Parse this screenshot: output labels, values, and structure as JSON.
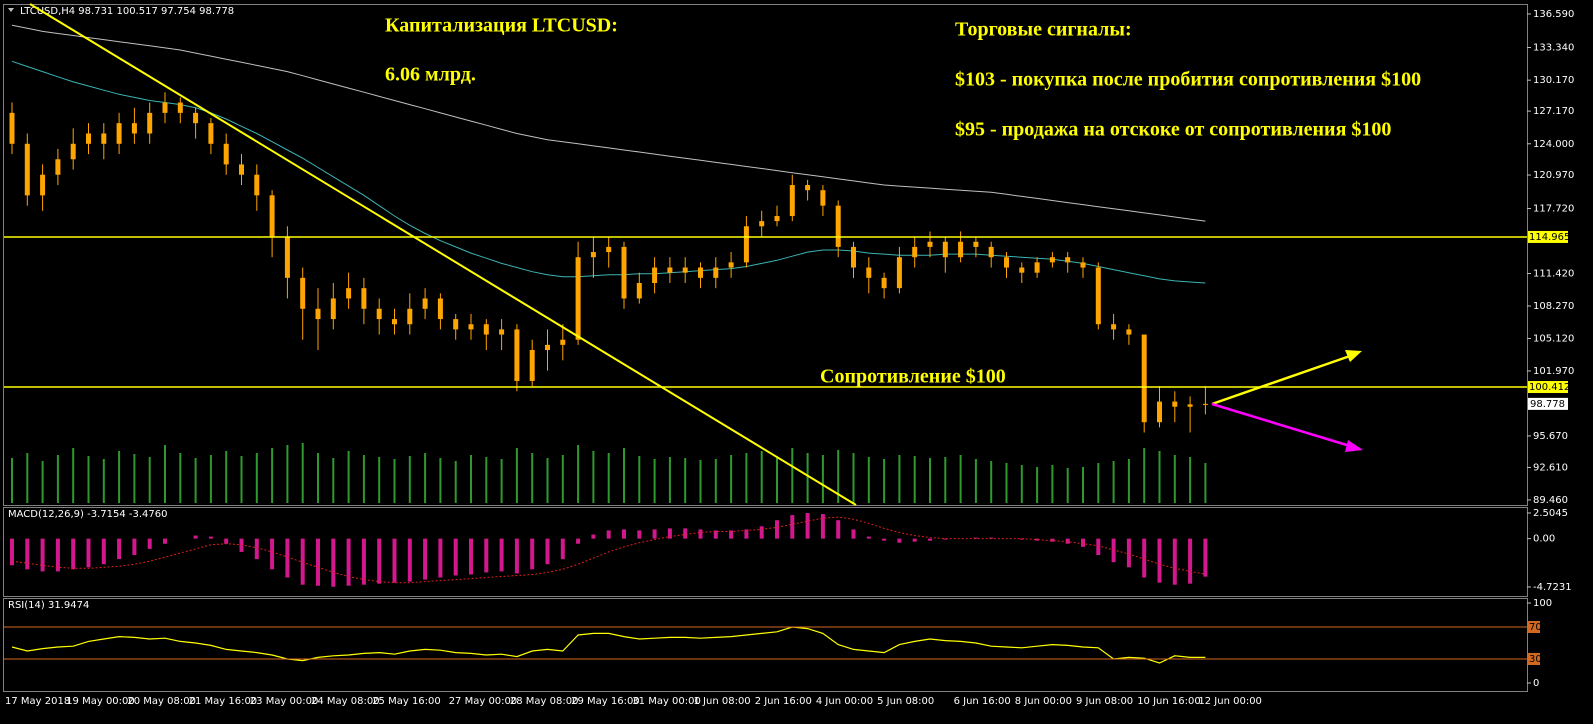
{
  "annotations": [
    "Капитализация LTCUSD:",
    "6.06 млрд.",
    "Торговые сигналы:",
    "$103 -  покупка после пробития сопротивления $100",
    "$95 - продажа на отскоке от сопротивления $100",
    "Сопротивление $100"
  ],
  "chart_data": [
    {
      "type": "candlestick",
      "header": "LTCUSD,H4  98.731 100.517 97.754 98.778",
      "color": "#ffa500",
      "categories": [
        "17 May 2018",
        null,
        null,
        null,
        "19 May 00:00",
        null,
        null,
        null,
        "20 May 08:00",
        null,
        null,
        null,
        "21 May 16:00",
        null,
        null,
        null,
        "23 May 00:00",
        null,
        null,
        null,
        "24 May 08:00",
        null,
        null,
        null,
        "25 May 16:00",
        null,
        null,
        null,
        null,
        "27 May 00:00",
        null,
        null,
        null,
        "28 May 08:00",
        null,
        null,
        null,
        "29 May 16:00",
        null,
        null,
        null,
        "31 May 00:00",
        null,
        null,
        null,
        "1 Jun 08:00",
        null,
        null,
        null,
        "2 Jun 16:00",
        null,
        null,
        null,
        "4 Jun 00:00",
        null,
        null,
        null,
        "5 Jun 08:00",
        null,
        null,
        null,
        null,
        "6 Jun 16:00",
        null,
        null,
        null,
        "8 Jun 00:00",
        null,
        null,
        null,
        "9 Jun 08:00",
        null,
        null,
        null,
        "10 Jun 16:00",
        null,
        null,
        null,
        "12 Jun 00:00"
      ],
      "open": [
        127,
        124,
        119,
        121,
        122.5,
        124,
        125,
        124,
        126,
        125,
        127,
        128,
        127,
        126,
        124,
        122,
        121,
        119,
        115,
        111,
        108,
        107,
        109,
        110,
        108,
        107,
        106.5,
        108,
        109,
        107,
        106,
        106.5,
        105.5,
        106,
        101,
        104,
        104.5,
        105,
        113,
        113.5,
        114,
        109,
        110.5,
        112,
        111.5,
        112,
        111,
        112,
        112.5,
        116,
        116.5,
        117,
        120,
        119.5,
        118,
        114,
        112,
        111,
        110,
        113,
        114,
        114.5,
        113,
        114.5,
        114,
        113,
        112,
        111.5,
        112.5,
        113,
        112.5,
        112,
        106.5,
        106,
        105.5,
        97,
        99,
        98.5,
        98.731
      ],
      "high": [
        128,
        125,
        122,
        123.5,
        125.5,
        126,
        126,
        127,
        127.5,
        128,
        129,
        128.5,
        127.5,
        126.5,
        125,
        123,
        122,
        119.5,
        116,
        112,
        110,
        110.5,
        111.5,
        111,
        109,
        108,
        109.5,
        110,
        109.5,
        107.5,
        107.5,
        107,
        107,
        106.5,
        105,
        106,
        106.5,
        114.5,
        115,
        115,
        114.5,
        111.5,
        113,
        113,
        113,
        112.5,
        113,
        113.5,
        117,
        117.5,
        118,
        121,
        120.5,
        120,
        118.5,
        114.5,
        113,
        111.5,
        114,
        115,
        115.5,
        115,
        115.5,
        115,
        114.5,
        113.5,
        112.5,
        113,
        113.5,
        113.5,
        113,
        112.5,
        107.5,
        106.5,
        105.5,
        100.5,
        100,
        99.5,
        100.517
      ],
      "low": [
        123,
        118,
        117.5,
        120,
        121.5,
        123,
        122.5,
        123,
        124,
        124,
        126,
        126,
        124.5,
        123,
        121,
        120,
        117.5,
        113,
        109,
        105,
        104,
        106,
        108,
        106.5,
        105.5,
        105.5,
        105.5,
        107,
        106,
        105,
        105,
        104,
        104,
        100,
        100.5,
        102,
        103,
        104.5,
        111,
        112,
        108,
        108.5,
        109.5,
        110.5,
        110.5,
        110,
        110,
        111,
        112,
        115,
        116,
        116.5,
        118.5,
        117,
        113,
        111,
        109.5,
        109,
        109.5,
        112,
        113,
        111.5,
        112.5,
        113,
        112,
        111,
        110.5,
        111,
        112,
        111.5,
        111,
        106,
        105,
        104.5,
        96,
        96.5,
        97,
        96,
        97.754
      ],
      "close": [
        124,
        119,
        121,
        122.5,
        124,
        125,
        124,
        126,
        125,
        127,
        128,
        127,
        126,
        124,
        122,
        121,
        119,
        115,
        111,
        108,
        107,
        109,
        110,
        108,
        107,
        106.5,
        108,
        109,
        107,
        106,
        106.5,
        105.5,
        106,
        101,
        104,
        104.5,
        105,
        113,
        113.5,
        114,
        109,
        110.5,
        112,
        111.5,
        112,
        111,
        112,
        112.5,
        116,
        116.5,
        117,
        120,
        119.5,
        118,
        114,
        112,
        111,
        110,
        113,
        114,
        114.5,
        113,
        114.5,
        114,
        113,
        112,
        111.5,
        112.5,
        113,
        112.5,
        112,
        106.5,
        106,
        105.5,
        97,
        99,
        98.5,
        98.731,
        98.778
      ],
      "overlays": [
        {
          "color": "#c0c0c0",
          "values": [
            135.5,
            135.2,
            134.9,
            134.7,
            134.5,
            134.3,
            134.1,
            133.9,
            133.7,
            133.5,
            133.3,
            133.1,
            132.8,
            132.5,
            132.2,
            131.9,
            131.6,
            131.3,
            131,
            130.6,
            130.2,
            129.8,
            129.4,
            129,
            128.6,
            128.2,
            127.8,
            127.4,
            127,
            126.6,
            126.2,
            125.8,
            125.4,
            125,
            124.7,
            124.4,
            124.2,
            124,
            123.8,
            123.6,
            123.4,
            123.2,
            123,
            122.8,
            122.6,
            122.4,
            122.2,
            122,
            121.8,
            121.6,
            121.4,
            121.2,
            121,
            120.8,
            120.6,
            120.4,
            120.2,
            120,
            119.9,
            119.8,
            119.7,
            119.6,
            119.5,
            119.4,
            119.3,
            119.1,
            118.9,
            118.7,
            118.5,
            118.3,
            118.1,
            117.9,
            117.7,
            117.5,
            117.3,
            117.1,
            116.9,
            116.7,
            116.5
          ]
        },
        {
          "color": "#3cb4b4",
          "values": [
            132,
            131.5,
            131,
            130.5,
            130,
            129.6,
            129.2,
            128.8,
            128.5,
            128.2,
            128,
            127.8,
            127.5,
            127,
            126.4,
            125.7,
            125,
            124.2,
            123.4,
            122.6,
            121.7,
            120.8,
            119.9,
            119,
            118,
            117,
            116.1,
            115.3,
            114.6,
            114,
            113.4,
            112.9,
            112.4,
            112,
            111.6,
            111.3,
            111.1,
            111.1,
            111.2,
            111.3,
            111.3,
            111.4,
            111.4,
            111.5,
            111.6,
            111.7,
            111.8,
            111.9,
            112.1,
            112.4,
            112.7,
            113.1,
            113.5,
            113.7,
            113.7,
            113.6,
            113.4,
            113.3,
            113.2,
            113.2,
            113.2,
            113.3,
            113.3,
            113.3,
            113.2,
            113.1,
            113,
            112.9,
            112.8,
            112.6,
            112.4,
            112.1,
            111.8,
            111.5,
            111.2,
            110.9,
            110.7,
            110.6,
            110.5
          ]
        }
      ],
      "volume": {
        "color": "#2e9a2e",
        "values": [
          45,
          50,
          42,
          48,
          55,
          47,
          44,
          52,
          49,
          46,
          58,
          50,
          45,
          48,
          52,
          47,
          50,
          55,
          58,
          60,
          50,
          45,
          52,
          48,
          46,
          44,
          47,
          50,
          45,
          42,
          48,
          46,
          44,
          55,
          50,
          45,
          48,
          58,
          52,
          50,
          55,
          47,
          44,
          46,
          45,
          43,
          44,
          48,
          50,
          52,
          47,
          55,
          50,
          48,
          53,
          50,
          46,
          44,
          48,
          47,
          45,
          46,
          48,
          44,
          42,
          40,
          38,
          36,
          38,
          35,
          36,
          40,
          42,
          44,
          55,
          52,
          48,
          46,
          40
        ]
      },
      "levels": [
        114.965,
        100.412
      ],
      "level_color": "#ffff00",
      "ylim": [
        88.97,
        137.46
      ],
      "yticks": [
        {
          "value": 136.59,
          "label": "136.590"
        },
        {
          "value": 133.34,
          "label": "133.340"
        },
        {
          "value": 130.17,
          "label": "130.170"
        },
        {
          "value": 127.17,
          "label": "127.170"
        },
        {
          "value": 124,
          "label": "124.000"
        },
        {
          "value": 120.97,
          "label": "120.970"
        },
        {
          "value": 117.72,
          "label": "117.720"
        },
        {
          "value": 111.42,
          "label": "111.420"
        },
        {
          "value": 108.27,
          "label": "108.270"
        },
        {
          "value": 105.12,
          "label": "105.120"
        },
        {
          "value": 101.97,
          "label": "101.970"
        },
        {
          "value": 95.67,
          "label": "95.670"
        },
        {
          "value": 92.61,
          "label": "92.610"
        },
        {
          "value": 89.46,
          "label": "89.460"
        }
      ],
      "grid": false
    },
    {
      "type": "macd",
      "header": "MACD(12,26,9) -3.7154 -3.4760",
      "color": "#d2188c",
      "signal_color": "#e02020",
      "values": [
        -2.6,
        -3,
        -3.2,
        -3.2,
        -3,
        -2.8,
        -2.5,
        -2,
        -1.6,
        -1,
        -0.5,
        0,
        0.3,
        0.2,
        -0.5,
        -1.3,
        -2,
        -3,
        -3.8,
        -4.5,
        -4.6,
        -4.7,
        -4.6,
        -4.5,
        -4.4,
        -4.3,
        -4.2,
        -4,
        -3.8,
        -3.6,
        -3.5,
        -3.3,
        -3.2,
        -3.4,
        -3,
        -2.5,
        -2,
        -0.5,
        0.4,
        0.8,
        0.9,
        0.8,
        0.9,
        1,
        1,
        0.9,
        0.8,
        0.8,
        0.9,
        1.2,
        1.8,
        2.3,
        2.5,
        2.4,
        1.8,
        0.9,
        0.2,
        -0.2,
        -0.4,
        -0.3,
        -0.2,
        -0.1,
        0,
        0.1,
        0.1,
        0,
        -0.1,
        -0.2,
        -0.3,
        -0.5,
        -0.8,
        -1.6,
        -2.3,
        -2.8,
        -3.8,
        -4.3,
        -4.5,
        -4.4,
        -3.7154
      ],
      "signal": [
        -2.2,
        -2.4,
        -2.6,
        -2.8,
        -2.9,
        -2.9,
        -2.8,
        -2.7,
        -2.5,
        -2.2,
        -1.8,
        -1.4,
        -1,
        -0.6,
        -0.5,
        -0.6,
        -0.9,
        -1.3,
        -1.8,
        -2.3,
        -2.8,
        -3.3,
        -3.7,
        -4,
        -4.2,
        -4.3,
        -4.3,
        -4.2,
        -4.1,
        -4,
        -3.9,
        -3.8,
        -3.7,
        -3.6,
        -3.5,
        -3.3,
        -3,
        -2.5,
        -1.9,
        -1.3,
        -0.8,
        -0.4,
        -0.1,
        0.2,
        0.4,
        0.6,
        0.7,
        0.7,
        0.8,
        0.9,
        1.1,
        1.4,
        1.7,
        2,
        2.1,
        1.9,
        1.5,
        1,
        0.6,
        0.3,
        0.1,
        0,
        0,
        0,
        0,
        0,
        0,
        -0.1,
        -0.2,
        -0.3,
        -0.5,
        -0.7,
        -1.1,
        -1.5,
        -2,
        -2.5,
        -2.9,
        -3.2,
        -3.476
      ],
      "ylim": [
        -5.7,
        2.99
      ],
      "yticks": [
        2.5045,
        {
          "value": 0,
          "label": "0.00"
        },
        -4.7231
      ]
    },
    {
      "type": "rsi",
      "header": "RSI(14) 31.9474",
      "color": "#ffff00",
      "values": [
        45,
        40,
        43,
        45,
        46,
        52,
        55,
        58,
        57,
        55,
        56,
        52,
        50,
        47,
        42,
        40,
        38,
        35,
        30,
        28,
        32,
        34,
        35,
        37,
        38,
        36,
        40,
        42,
        41,
        38,
        37,
        35,
        36,
        33,
        40,
        42,
        40,
        60,
        62,
        62,
        58,
        55,
        56,
        57,
        57,
        56,
        57,
        58,
        60,
        62,
        64,
        70,
        68,
        62,
        48,
        42,
        40,
        38,
        48,
        52,
        55,
        53,
        52,
        50,
        46,
        45,
        44,
        46,
        48,
        47,
        45,
        44,
        30,
        32,
        31,
        25,
        34,
        32,
        31.9474
      ],
      "levels": [
        70,
        30
      ],
      "level_color": "#d2691e",
      "ylim": [
        -10,
        105
      ],
      "yticks": [
        100,
        0
      ]
    }
  ]
}
